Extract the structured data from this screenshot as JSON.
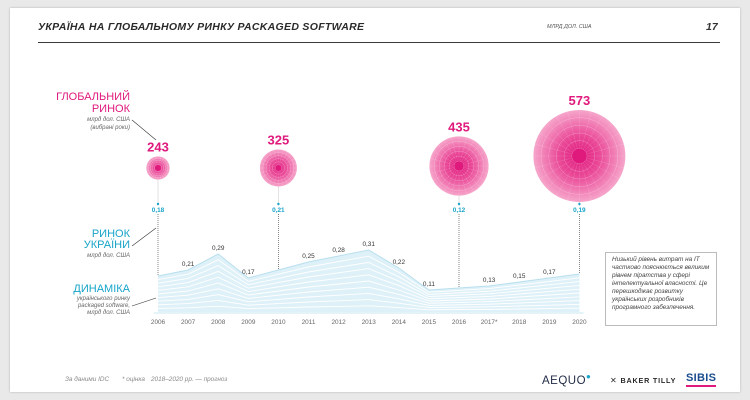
{
  "header": {
    "title": "УКРАЇНА НА ГЛОБАЛЬНОМУ РИНКУ PACKAGED SOFTWARE",
    "unit": "МЛРД ДОЛ. США",
    "page_number": "17"
  },
  "labels": {
    "global_title_1": "ГЛОБАЛЬНИЙ",
    "global_title_2": "РИНОК",
    "global_sub_1": "млрд дол. США",
    "global_sub_2": "(вибрані роки)",
    "ukraine_title_1": "РИНОК",
    "ukraine_title_2": "УКРАЇНИ",
    "ukraine_sub": "млрд дол. США",
    "dyn_title": "ДИНАМІКА",
    "dyn_sub_1": "українського ринку",
    "dyn_sub_2": "packaged software,",
    "dyn_sub_3": "млрд дол. США"
  },
  "chart_data": {
    "type": "area",
    "categories": [
      "2006",
      "2007",
      "2008",
      "2009",
      "2010",
      "2011",
      "2012",
      "2013",
      "2014",
      "2015",
      "2016",
      "2017*",
      "2018",
      "2019",
      "2020"
    ],
    "ukraine_market": {
      "values": [
        null,
        0.21,
        0.29,
        0.17,
        null,
        0.25,
        0.28,
        0.31,
        0.22,
        0.11,
        null,
        0.13,
        0.15,
        0.17,
        null
      ],
      "value_labels": [
        "",
        "0,21",
        "0,29",
        "0,17",
        "",
        "0,25",
        "0,28",
        "0,31",
        "0,22",
        "0,11",
        "",
        "0,13",
        "0,15",
        "0,17",
        ""
      ]
    },
    "global_market": [
      {
        "year": "2006",
        "value": 243,
        "value_label": "243",
        "ukraine_label": "0,18"
      },
      {
        "year": "2010",
        "value": 325,
        "value_label": "325",
        "ukraine_label": "0,21"
      },
      {
        "year": "2016",
        "value": 435,
        "value_label": "435",
        "ukraine_label": "0,12"
      },
      {
        "year": "2020",
        "value": 573,
        "value_label": "573",
        "ukraine_label": "0,19"
      }
    ],
    "colors": {
      "global": "#e0197d",
      "ukraine": "#18a4c8"
    }
  },
  "note": {
    "text": "Низький рівень витрат на ІТ частково пояснюється великим рівнем піратства у сфері інтелектуальної власності. Це перешкоджає розвитку українських розробників програмного забезпечення."
  },
  "footer": {
    "source": "За даними IDC",
    "estimate": "* оцінка",
    "forecast": "2018–2020 рр. — прогноз"
  },
  "logos": {
    "aequo": "AEQUO",
    "baker_tilly": "BAKER TILLY",
    "sibis": "SIBIS"
  }
}
